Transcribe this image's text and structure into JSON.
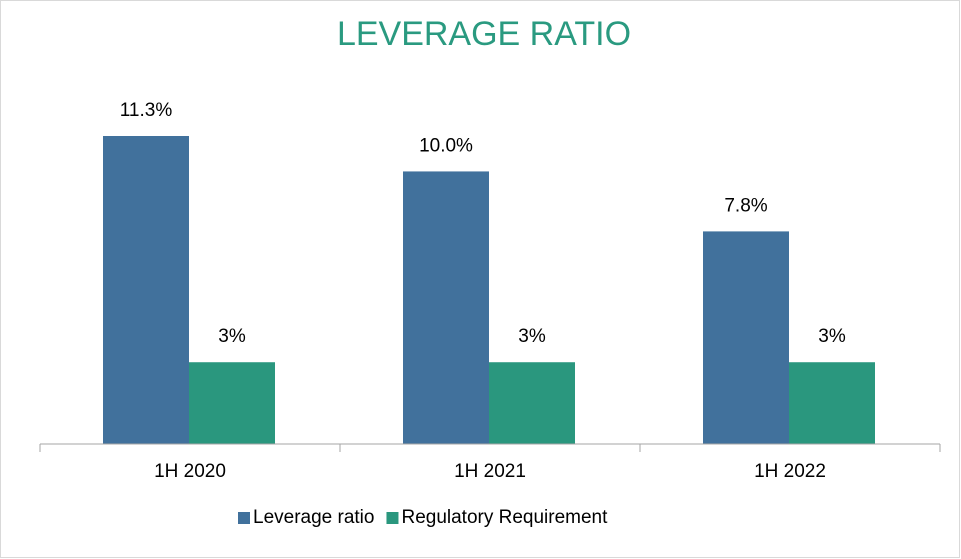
{
  "chart_data": {
    "type": "bar",
    "title": "LEVERAGE RATIO",
    "categories": [
      "1H 2020",
      "1H 2021",
      "1H 2022"
    ],
    "series": [
      {
        "name": "Leverage ratio",
        "color": "#41719c",
        "values": [
          11.3,
          10.0,
          7.8
        ],
        "value_labels": [
          "11.3%",
          "10.0%",
          "7.8%"
        ]
      },
      {
        "name": "Regulatory Requirement",
        "color": "#2a977e",
        "values": [
          3,
          3,
          3
        ],
        "value_labels": [
          "3%",
          "3%",
          "3%"
        ]
      }
    ],
    "title_color": "#2a9a80",
    "legend": "bottom"
  }
}
